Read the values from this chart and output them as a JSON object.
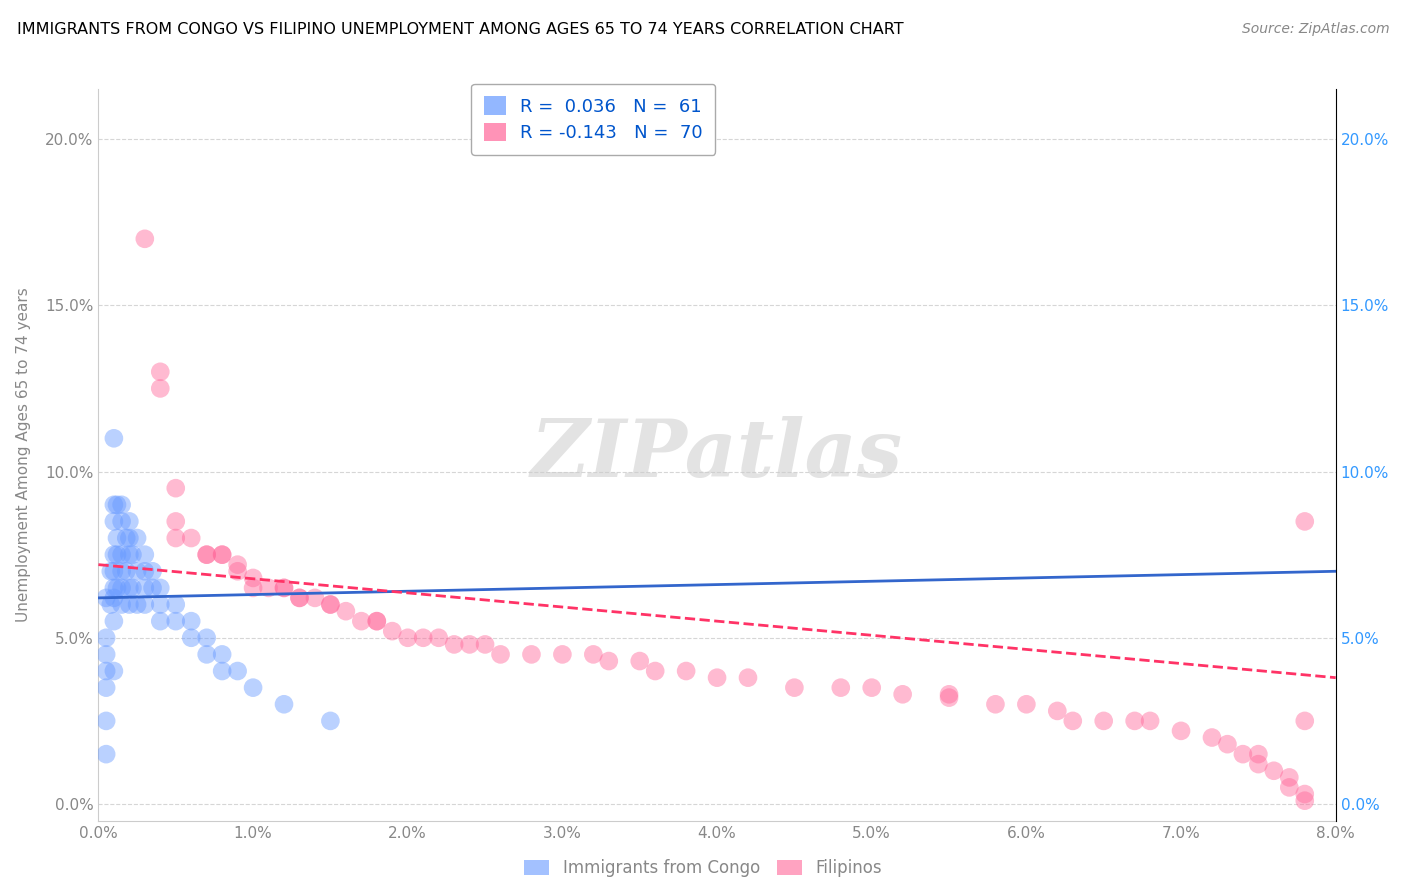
{
  "title": "IMMIGRANTS FROM CONGO VS FILIPINO UNEMPLOYMENT AMONG AGES 65 TO 74 YEARS CORRELATION CHART",
  "source": "Source: ZipAtlas.com",
  "ylabel": "Unemployment Among Ages 65 to 74 years",
  "xlim": [
    0.0,
    0.08
  ],
  "ylim": [
    -0.005,
    0.215
  ],
  "xticks": [
    0.0,
    0.01,
    0.02,
    0.03,
    0.04,
    0.05,
    0.06,
    0.07,
    0.08
  ],
  "xticklabels": [
    "0.0%",
    "1.0%",
    "2.0%",
    "3.0%",
    "4.0%",
    "5.0%",
    "6.0%",
    "7.0%",
    "8.0%"
  ],
  "yticks": [
    0.0,
    0.05,
    0.1,
    0.15,
    0.2
  ],
  "yticklabels": [
    "0.0%",
    "5.0%",
    "10.0%",
    "15.0%",
    "20.0%"
  ],
  "legend1_r": "0.036",
  "legend1_n": "61",
  "legend2_r": "-0.143",
  "legend2_n": "70",
  "series1_color": "#6699FF",
  "series2_color": "#FF6699",
  "trendline1_color": "#3366CC",
  "trendline2_color": "#FF3366",
  "watermark": "ZIPatlas",
  "series1_label": "Immigrants from Congo",
  "series2_label": "Filipinos",
  "congo_x": [
    0.0005,
    0.0005,
    0.0005,
    0.0005,
    0.0005,
    0.0005,
    0.0005,
    0.0008,
    0.0008,
    0.001,
    0.001,
    0.001,
    0.001,
    0.001,
    0.001,
    0.001,
    0.001,
    0.0012,
    0.0012,
    0.0012,
    0.0012,
    0.0015,
    0.0015,
    0.0015,
    0.0015,
    0.0015,
    0.0015,
    0.0018,
    0.0018,
    0.002,
    0.002,
    0.002,
    0.002,
    0.002,
    0.0022,
    0.0022,
    0.0025,
    0.0025,
    0.0025,
    0.003,
    0.003,
    0.003,
    0.003,
    0.0035,
    0.0035,
    0.004,
    0.004,
    0.004,
    0.005,
    0.005,
    0.006,
    0.006,
    0.007,
    0.007,
    0.008,
    0.008,
    0.009,
    0.01,
    0.012,
    0.015,
    0.001
  ],
  "congo_y": [
    0.062,
    0.05,
    0.045,
    0.04,
    0.035,
    0.025,
    0.015,
    0.07,
    0.06,
    0.09,
    0.085,
    0.075,
    0.07,
    0.065,
    0.062,
    0.055,
    0.04,
    0.09,
    0.08,
    0.075,
    0.065,
    0.09,
    0.085,
    0.075,
    0.07,
    0.065,
    0.06,
    0.08,
    0.07,
    0.085,
    0.08,
    0.075,
    0.065,
    0.06,
    0.075,
    0.065,
    0.08,
    0.07,
    0.06,
    0.075,
    0.07,
    0.065,
    0.06,
    0.07,
    0.065,
    0.065,
    0.06,
    0.055,
    0.06,
    0.055,
    0.055,
    0.05,
    0.05,
    0.045,
    0.045,
    0.04,
    0.04,
    0.035,
    0.03,
    0.025,
    0.11
  ],
  "filipino_x": [
    0.003,
    0.004,
    0.004,
    0.005,
    0.005,
    0.005,
    0.006,
    0.007,
    0.007,
    0.008,
    0.008,
    0.009,
    0.009,
    0.01,
    0.01,
    0.011,
    0.012,
    0.012,
    0.013,
    0.013,
    0.014,
    0.015,
    0.015,
    0.016,
    0.017,
    0.018,
    0.018,
    0.019,
    0.02,
    0.021,
    0.022,
    0.023,
    0.024,
    0.025,
    0.026,
    0.028,
    0.03,
    0.032,
    0.033,
    0.035,
    0.036,
    0.038,
    0.04,
    0.042,
    0.045,
    0.048,
    0.05,
    0.052,
    0.055,
    0.055,
    0.058,
    0.06,
    0.062,
    0.063,
    0.065,
    0.067,
    0.068,
    0.07,
    0.072,
    0.073,
    0.074,
    0.075,
    0.075,
    0.076,
    0.077,
    0.077,
    0.078,
    0.078,
    0.078,
    0.078
  ],
  "filipino_y": [
    0.17,
    0.13,
    0.125,
    0.095,
    0.085,
    0.08,
    0.08,
    0.075,
    0.075,
    0.075,
    0.075,
    0.072,
    0.07,
    0.068,
    0.065,
    0.065,
    0.065,
    0.065,
    0.062,
    0.062,
    0.062,
    0.06,
    0.06,
    0.058,
    0.055,
    0.055,
    0.055,
    0.052,
    0.05,
    0.05,
    0.05,
    0.048,
    0.048,
    0.048,
    0.045,
    0.045,
    0.045,
    0.045,
    0.043,
    0.043,
    0.04,
    0.04,
    0.038,
    0.038,
    0.035,
    0.035,
    0.035,
    0.033,
    0.033,
    0.032,
    0.03,
    0.03,
    0.028,
    0.025,
    0.025,
    0.025,
    0.025,
    0.022,
    0.02,
    0.018,
    0.015,
    0.015,
    0.012,
    0.01,
    0.008,
    0.005,
    0.003,
    0.001,
    0.085,
    0.025
  ],
  "trendline1_x": [
    0.0,
    0.08
  ],
  "trendline1_y": [
    0.062,
    0.07
  ],
  "trendline2_x": [
    0.0,
    0.08
  ],
  "trendline2_y": [
    0.072,
    0.038
  ]
}
